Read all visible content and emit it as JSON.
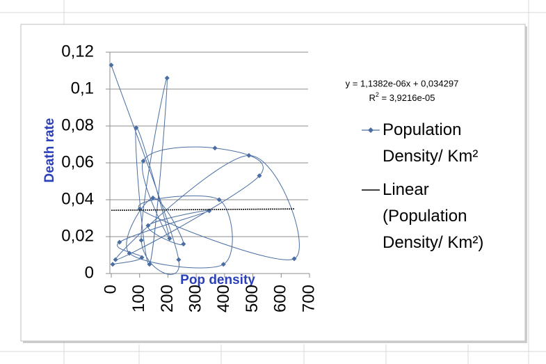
{
  "chart_data": {
    "type": "scatter",
    "y_label": "Death rate",
    "x_label": "Pop density",
    "xlim": [
      0,
      700
    ],
    "ylim": [
      0,
      0.12
    ],
    "xticks": [
      0,
      100,
      200,
      300,
      400,
      500,
      600,
      700
    ],
    "yticks": [
      0,
      {
        "value": 0.02,
        "label": "0,02"
      },
      {
        "value": 0.04,
        "label": "0,04"
      },
      {
        "value": 0.06,
        "label": "0,06"
      },
      {
        "value": 0.08,
        "label": "0,08"
      },
      {
        "value": 0.1,
        "label": "0,1"
      },
      {
        "value": 0.12,
        "label": "0,12"
      }
    ],
    "grid": true,
    "smooth": true,
    "series": [
      {
        "name": "Population Density/ Km²",
        "color": "#4a6da3",
        "x": [
          0,
          238,
          106,
          197,
          135,
          88,
          206,
          113,
          366,
          523,
          15,
          486,
          646,
          101,
          381,
          396,
          64,
          147,
          255,
          130,
          346,
          29,
          108,
          5
        ],
        "values": [
          0.113,
          0.0075,
          0.018,
          0.106,
          0.005,
          0.079,
          0.019,
          0.061,
          0.068,
          0.053,
          0.0075,
          0.064,
          0.008,
          0.035,
          0.04,
          0.005,
          0.011,
          0.041,
          0.016,
          0.026,
          0.034,
          0.017,
          0.0087,
          0.005
        ]
      }
    ],
    "trendline": {
      "name": "Linear (Population Density/ Km²)",
      "color": "#000000",
      "slope": 1.1382e-06,
      "intercept": 0.034297,
      "equation": "y = 1,1382e-06x + 0,034297",
      "r_squared_label": [
        "R",
        "2",
        " = 3,9216e-05"
      ]
    }
  }
}
